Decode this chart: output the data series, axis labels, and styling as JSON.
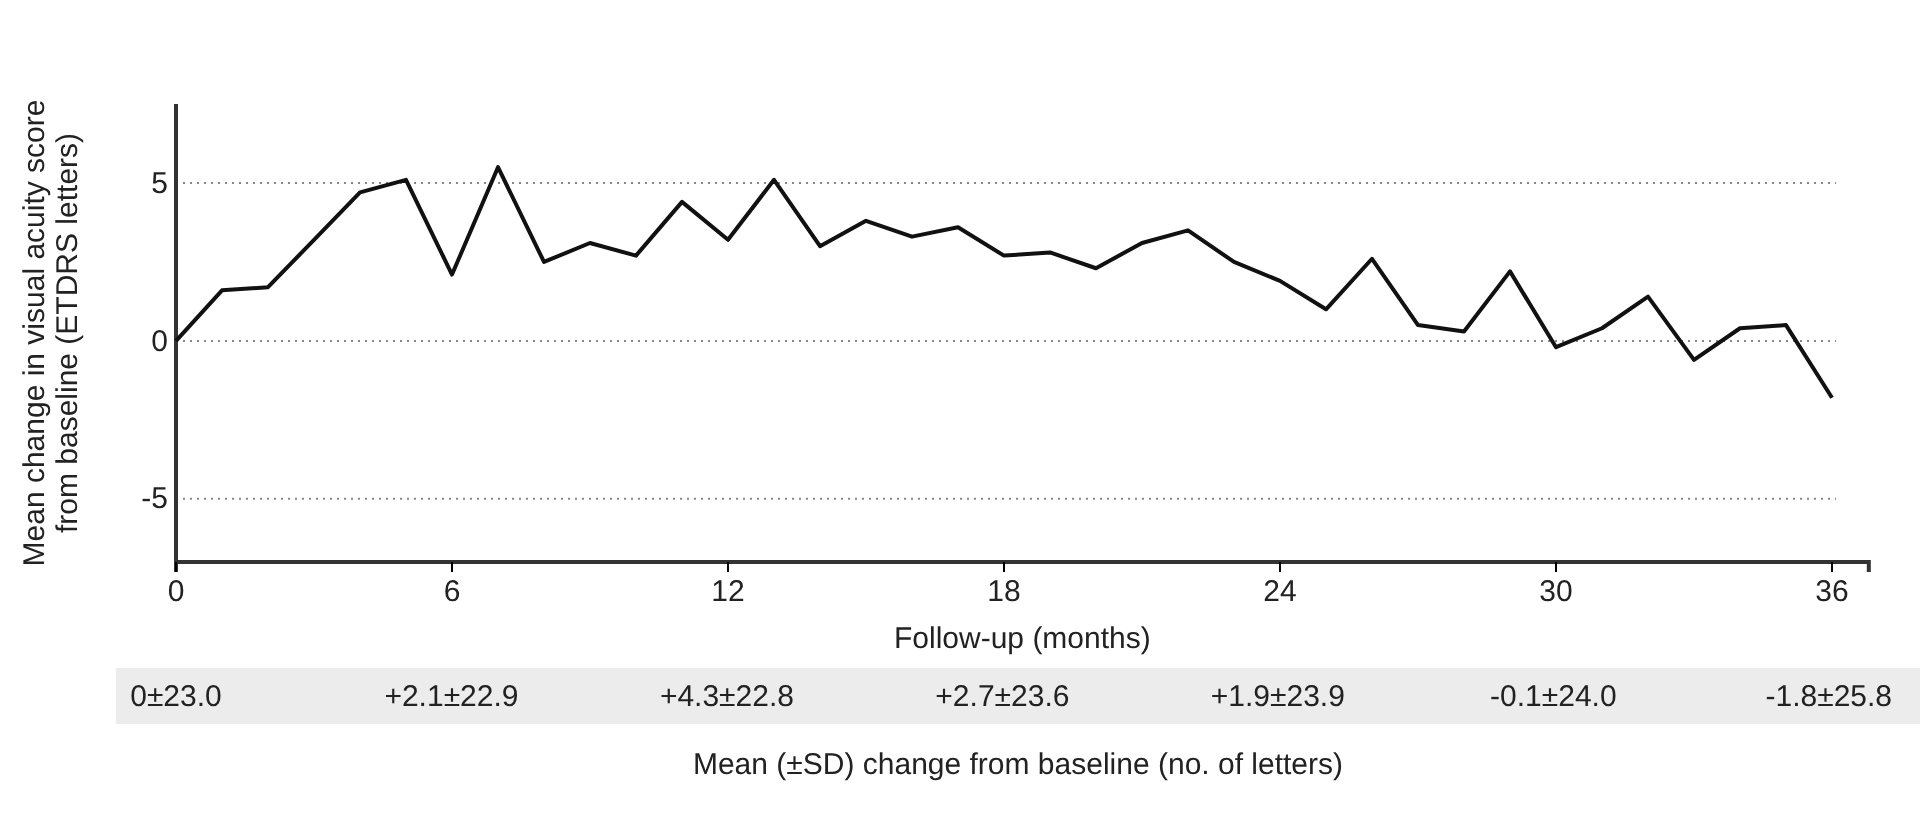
{
  "chart_data": {
    "type": "line",
    "x": [
      0,
      1,
      2,
      3,
      4,
      5,
      6,
      7,
      8,
      9,
      10,
      11,
      12,
      13,
      14,
      15,
      16,
      17,
      18,
      19,
      20,
      21,
      22,
      23,
      24,
      25,
      26,
      27,
      28,
      29,
      30,
      31,
      32,
      33,
      34,
      35,
      36
    ],
    "series": [
      {
        "color": "#111111",
        "values": [
          0,
          1.6,
          1.7,
          3.2,
          4.7,
          5.1,
          2.1,
          5.5,
          2.5,
          3.1,
          2.7,
          4.4,
          3.2,
          5.1,
          3.0,
          3.8,
          3.3,
          3.6,
          2.7,
          2.8,
          2.3,
          3.1,
          3.5,
          2.5,
          1.9,
          1.0,
          2.6,
          0.5,
          0.3,
          2.2,
          -0.2,
          0.4,
          1.4,
          -0.6,
          0.4,
          0.5,
          -1.8
        ]
      }
    ],
    "xlim": [
      0,
      36.8
    ],
    "xticks": [
      0,
      6,
      12,
      18,
      24,
      30,
      36
    ],
    "ylim": [
      -7,
      7.5
    ],
    "yticks": [
      -5,
      0,
      5
    ],
    "grid": "y",
    "marker": "none",
    "line_style": "solid",
    "xlabel": "Follow-up (months)",
    "ylabel": "Mean change in visual acuity score\nfrom baseline (ETDRS letters)",
    "annotations": [
      "0±23.0",
      "+2.1±22.9",
      "+4.3±22.8",
      "+2.7±23.6",
      "+1.9±23.9",
      "-0.1±24.0",
      "-1.8±25.8",
      "Mean (±SD) change from baseline (no. of letters)"
    ]
  }
}
